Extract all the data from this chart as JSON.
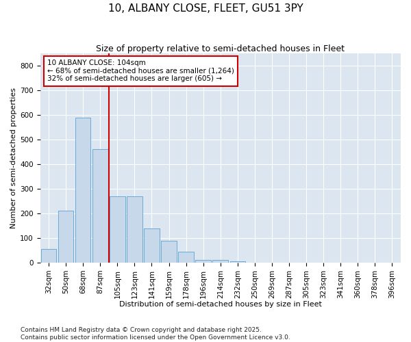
{
  "title": "10, ALBANY CLOSE, FLEET, GU51 3PY",
  "subtitle": "Size of property relative to semi-detached houses in Fleet",
  "xlabel": "Distribution of semi-detached houses by size in Fleet",
  "ylabel": "Number of semi-detached properties",
  "categories": [
    "32sqm",
    "50sqm",
    "68sqm",
    "87sqm",
    "105sqm",
    "123sqm",
    "141sqm",
    "159sqm",
    "178sqm",
    "196sqm",
    "214sqm",
    "232sqm",
    "250sqm",
    "269sqm",
    "287sqm",
    "305sqm",
    "323sqm",
    "341sqm",
    "360sqm",
    "378sqm",
    "396sqm"
  ],
  "values": [
    55,
    210,
    590,
    460,
    270,
    270,
    140,
    90,
    45,
    10,
    10,
    5,
    0,
    0,
    0,
    0,
    0,
    0,
    0,
    0,
    0
  ],
  "bar_color": "#c8d8eb",
  "bar_edge_color": "#6aaad4",
  "vline_x_index": 4,
  "vline_color": "#cc0000",
  "annotation_text": "10 ALBANY CLOSE: 104sqm\n← 68% of semi-detached houses are smaller (1,264)\n32% of semi-detached houses are larger (605) →",
  "ylim": [
    0,
    850
  ],
  "yticks": [
    0,
    100,
    200,
    300,
    400,
    500,
    600,
    700,
    800
  ],
  "plot_bg_color": "#dce6f1",
  "footer": "Contains HM Land Registry data © Crown copyright and database right 2025.\nContains public sector information licensed under the Open Government Licence v3.0.",
  "title_fontsize": 11,
  "subtitle_fontsize": 9,
  "xlabel_fontsize": 8,
  "ylabel_fontsize": 8,
  "annotation_fontsize": 7.5,
  "footer_fontsize": 6.5,
  "tick_fontsize": 7.5
}
